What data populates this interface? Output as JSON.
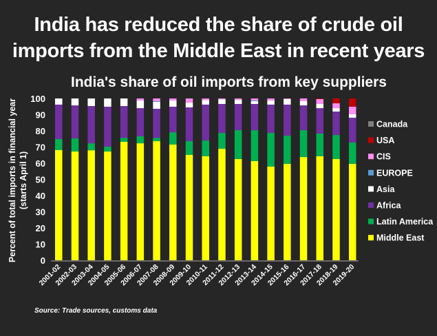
{
  "header": {
    "title_line1": "India has reduced the share of crude oil",
    "title_line2": "imports from the Middle East in recent years"
  },
  "source": "Source: Trade sources, customs data",
  "chart_data": {
    "type": "bar",
    "stacked": true,
    "title": "India's share of oil imports from key suppliers",
    "xlabel": "",
    "ylabel_line1": "Percent of total imports in financial year",
    "ylabel_line2": "(starts April 1)",
    "ylim": [
      0,
      100
    ],
    "yticks": [
      0,
      10,
      20,
      30,
      40,
      50,
      60,
      70,
      80,
      90,
      100
    ],
    "grid": false,
    "legend_position": "right",
    "categories": [
      "2001-02",
      "2002-03",
      "2003-04",
      "2004-05",
      "2005-06",
      "2006-07",
      "2007-08",
      "2008-09",
      "2009-10",
      "2010-11",
      "2011-12",
      "2012-13",
      "2013-14",
      "2014-15",
      "2015-16",
      "2016-17",
      "2017-18",
      "2018-19",
      "2019-20"
    ],
    "series": [
      {
        "name": "Middle East",
        "color": "#ffff00",
        "values": [
          68.1,
          67.2,
          68.0,
          67.2,
          73.2,
          72.3,
          73.6,
          71.5,
          65.1,
          64.3,
          68.9,
          62.6,
          61.3,
          57.9,
          59.6,
          63.8,
          64.3,
          62.6,
          59.6
        ]
      },
      {
        "name": "Latin America",
        "color": "#00b050",
        "values": [
          6.8,
          8.1,
          4.3,
          3.0,
          2.5,
          4.3,
          2.1,
          7.6,
          8.5,
          9.7,
          9.8,
          17.8,
          19.1,
          20.8,
          17.4,
          16.6,
          14.0,
          14.8,
          13.2
        ]
      },
      {
        "name": "Africa",
        "color": "#7030a0",
        "values": [
          21.3,
          20.4,
          23.0,
          24.7,
          19.6,
          17.4,
          17.9,
          15.8,
          20.9,
          22.2,
          17.9,
          16.2,
          16.2,
          17.5,
          19.2,
          15.3,
          15.7,
          14.5,
          15.3
        ]
      },
      {
        "name": "Asia",
        "color": "#ffffff",
        "values": [
          3.8,
          4.3,
          4.7,
          5.1,
          4.7,
          4.7,
          4.3,
          3.8,
          2.9,
          2.8,
          2.9,
          2.5,
          1.7,
          2.5,
          3.4,
          2.6,
          2.6,
          2.1,
          2.1
        ]
      },
      {
        "name": "EUROPE",
        "color": "#5b9bd5",
        "values": [
          0,
          0,
          0,
          0,
          0,
          0,
          0.4,
          0,
          0,
          0,
          0,
          0,
          0.4,
          0,
          0,
          0,
          0,
          0,
          0
        ]
      },
      {
        "name": "CIS",
        "color": "#ff8ef2",
        "values": [
          0,
          0,
          0,
          0,
          0,
          1.3,
          1.7,
          1.3,
          2.6,
          1.0,
          0.5,
          0.9,
          1.3,
          1.3,
          0.4,
          1.7,
          3.0,
          3.0,
          4.7
        ]
      },
      {
        "name": "USA",
        "color": "#c00000",
        "values": [
          0,
          0,
          0,
          0,
          0,
          0,
          0,
          0,
          0,
          0,
          0,
          0,
          0,
          0,
          0,
          0,
          0.4,
          3.0,
          5.1
        ]
      },
      {
        "name": "Canada",
        "color": "#7f7f7f",
        "values": [
          0,
          0,
          0,
          0,
          0,
          0,
          0,
          0,
          0,
          0,
          0,
          0,
          0,
          0,
          0,
          0,
          0,
          0,
          0
        ]
      }
    ],
    "legend_order": [
      "Canada",
      "USA",
      "CIS",
      "EUROPE",
      "Asia",
      "Africa",
      "Latin America",
      "Middle East"
    ]
  }
}
